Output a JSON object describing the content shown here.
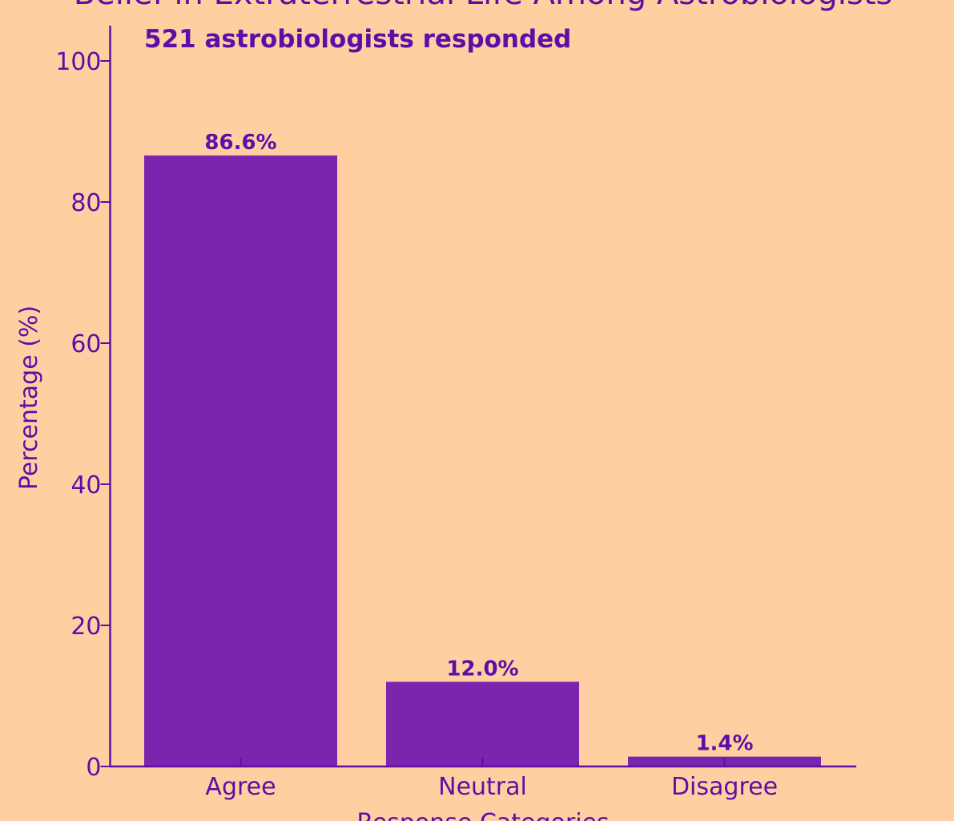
{
  "colors": {
    "background": "#ffcfa1",
    "bar": "#7b25ae",
    "text": "#5c0ea6",
    "axis": "#5c0ea6"
  },
  "chart_data": {
    "type": "bar",
    "title": "Belief in Extraterrestrial Life Among Astrobiologists",
    "subtitle": "521 astrobiologists responded",
    "xlabel": "Response Categories",
    "ylabel": "Percentage (%)",
    "categories": [
      "Agree",
      "Neutral",
      "Disagree"
    ],
    "values": [
      86.6,
      12.0,
      1.4
    ],
    "value_labels": [
      "86.6%",
      "12.0%",
      "1.4%"
    ],
    "ylim": [
      0,
      105
    ],
    "yticks": [
      0,
      20,
      40,
      60,
      80,
      100
    ],
    "ytick_labels": [
      "0",
      "20",
      "40",
      "60",
      "80",
      "100"
    ],
    "grid": false
  }
}
